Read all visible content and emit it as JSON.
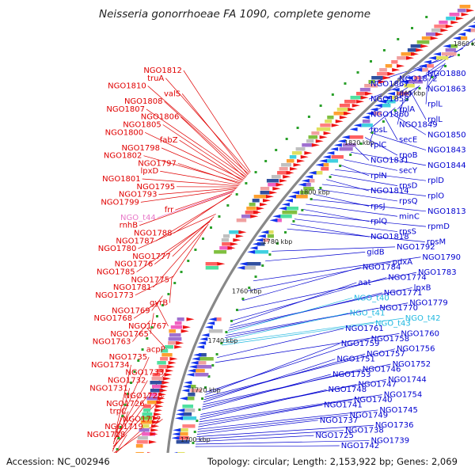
{
  "title": "Neisseria gonorrhoeae FA 1090, complete genome",
  "footer": {
    "accession": "Accession: NC_002946",
    "summary": "Topology: circular; Length: 2,153,922 bp; Genes: 2,069"
  },
  "colors": {
    "left_label": "#e00000",
    "right_label": "#0000d0",
    "trna_left": "#e878c8",
    "trna_right": "#20b8e0",
    "chromosome": "#888888",
    "tick": "#2aa02a"
  },
  "scale_marks": [
    {
      "kbp": 1860,
      "label": "1860 kbp"
    },
    {
      "kbp": 1840,
      "label": "1840 kbp"
    },
    {
      "kbp": 1820,
      "label": "1820 kbp"
    },
    {
      "kbp": 1800,
      "label": "1800 kbp"
    },
    {
      "kbp": 1780,
      "label": "1780 kbp"
    },
    {
      "kbp": 1760,
      "label": "1760 kbp"
    },
    {
      "kbp": 1740,
      "label": "1740 kbp"
    },
    {
      "kbp": 1720,
      "label": "1720 kbp"
    },
    {
      "kbp": 1700,
      "label": "1700 kbp"
    }
  ],
  "left_labels": [
    {
      "text": "NGO1812",
      "kbp": 1808.0,
      "type": "gene"
    },
    {
      "text": "truA",
      "kbp": 1807.6,
      "type": "gene"
    },
    {
      "text": "NGO1810",
      "kbp": 1807.2,
      "type": "gene"
    },
    {
      "text": "valS",
      "kbp": 1806.8,
      "type": "gene"
    },
    {
      "text": "NGO1808",
      "kbp": 1806.4,
      "type": "gene"
    },
    {
      "text": "NGO1807",
      "kbp": 1806.0,
      "type": "gene"
    },
    {
      "text": "NGO1806",
      "kbp": 1805.6,
      "type": "gene"
    },
    {
      "text": "NGO1805",
      "kbp": 1805.2,
      "type": "gene"
    },
    {
      "text": "NGO1800",
      "kbp": 1804.8,
      "type": "gene"
    },
    {
      "text": "fabZ",
      "kbp": 1804.4,
      "type": "gene"
    },
    {
      "text": "NGO1798",
      "kbp": 1804.0,
      "type": "gene"
    },
    {
      "text": "NGO1802",
      "kbp": 1803.6,
      "type": "gene"
    },
    {
      "text": "NGO1797",
      "kbp": 1803.2,
      "type": "gene"
    },
    {
      "text": "lpxD",
      "kbp": 1802.8,
      "type": "gene"
    },
    {
      "text": "NGO1801",
      "kbp": 1802.4,
      "type": "gene"
    },
    {
      "text": "NGO1795",
      "kbp": 1802.0,
      "type": "gene"
    },
    {
      "text": "NGO1793",
      "kbp": 1801.6,
      "type": "gene"
    },
    {
      "text": "NGO1799",
      "kbp": 1801.2,
      "type": "gene"
    },
    {
      "text": "frr",
      "kbp": 1800.8,
      "type": "gene"
    },
    {
      "text": "NGO_t44",
      "kbp": 1800.4,
      "type": "trna"
    },
    {
      "text": "rnhB",
      "kbp": 1800.0,
      "type": "gene"
    },
    {
      "text": "NGO1788",
      "kbp": 1799.2,
      "type": "gene"
    },
    {
      "text": "NGO1787",
      "kbp": 1798.4,
      "type": "gene"
    },
    {
      "text": "NGO1780",
      "kbp": 1791.0,
      "type": "gene"
    },
    {
      "text": "NGO1777",
      "kbp": 1790.0,
      "type": "gene"
    },
    {
      "text": "NGO1776",
      "kbp": 1789.0,
      "type": "gene"
    },
    {
      "text": "NGO1785",
      "kbp": 1788.0,
      "type": "gene"
    },
    {
      "text": "NGO1775",
      "kbp": 1787.0,
      "type": "gene"
    },
    {
      "text": "NGO1781",
      "kbp": 1786.0,
      "type": "gene"
    },
    {
      "text": "NGO1773",
      "kbp": 1766.0,
      "type": "gene"
    },
    {
      "text": "gyrB",
      "kbp": 1764.5,
      "type": "gene"
    },
    {
      "text": "NGO1769",
      "kbp": 1758.0,
      "type": "gene"
    },
    {
      "text": "NGO1768",
      "kbp": 1756.0,
      "type": "gene"
    },
    {
      "text": "NGO1767",
      "kbp": 1754.0,
      "type": "gene"
    },
    {
      "text": "NGO1765",
      "kbp": 1751.0,
      "type": "gene"
    },
    {
      "text": "NGO1763",
      "kbp": 1748.0,
      "type": "gene"
    },
    {
      "text": "acpP",
      "kbp": 1745.0,
      "type": "gene"
    },
    {
      "text": "NGO1735",
      "kbp": 1702.0,
      "type": "gene"
    },
    {
      "text": "NGO1734",
      "kbp": 1701.0,
      "type": "gene"
    },
    {
      "text": "NGO1733",
      "kbp": 1700.0,
      "type": "gene"
    },
    {
      "text": "NGO1732",
      "kbp": 1699.0,
      "type": "gene"
    },
    {
      "text": "NGO1731",
      "kbp": 1698.0,
      "type": "gene"
    },
    {
      "text": "NGO1728",
      "kbp": 1697.0,
      "type": "gene"
    },
    {
      "text": "NGO1726",
      "kbp": 1696.0,
      "type": "gene"
    },
    {
      "text": "trpC",
      "kbp": 1695.0,
      "type": "gene"
    },
    {
      "text": "NGO1722",
      "kbp": 1694.0,
      "type": "gene"
    },
    {
      "text": "NGO1719",
      "kbp": 1693.0,
      "type": "gene"
    },
    {
      "text": "NGO1718",
      "kbp": 1692.0,
      "type": "gene"
    }
  ],
  "right_labels": [
    {
      "text": "NGO1880",
      "kbp": 1862.0,
      "type": "gene"
    },
    {
      "text": "NGO1872",
      "kbp": 1858.0,
      "type": "gene"
    },
    {
      "text": "NGO1867",
      "kbp": 1855.0,
      "type": "gene"
    },
    {
      "text": "NGO1863",
      "kbp": 1852.0,
      "type": "gene"
    },
    {
      "text": "def",
      "kbp": 1851.4,
      "type": "gene"
    },
    {
      "text": "NGO1858",
      "kbp": 1849.0,
      "type": "gene"
    },
    {
      "text": "rplL",
      "kbp": 1846.0,
      "type": "gene"
    },
    {
      "text": "rplA",
      "kbp": 1843.0,
      "type": "gene"
    },
    {
      "text": "NGO1860",
      "kbp": 1842.4,
      "type": "gene"
    },
    {
      "text": "rplL",
      "kbp": 1840.0,
      "type": "gene"
    },
    {
      "text": "NGO1849",
      "kbp": 1837.0,
      "type": "gene"
    },
    {
      "text": "rpsL",
      "kbp": 1834.0,
      "type": "gene"
    },
    {
      "text": "NGO1850",
      "kbp": 1832.0,
      "type": "gene"
    },
    {
      "text": "secE",
      "kbp": 1830.0,
      "type": "gene"
    },
    {
      "text": "rplC",
      "kbp": 1826.0,
      "type": "gene"
    },
    {
      "text": "NGO1843",
      "kbp": 1824.0,
      "type": "gene"
    },
    {
      "text": "rpoB",
      "kbp": 1822.0,
      "type": "gene"
    },
    {
      "text": "NGO1831",
      "kbp": 1818.0,
      "type": "gene"
    },
    {
      "text": "NGO1844",
      "kbp": 1816.0,
      "type": "gene"
    },
    {
      "text": "secY",
      "kbp": 1813.0,
      "type": "gene"
    },
    {
      "text": "rplN",
      "kbp": 1811.0,
      "type": "gene"
    },
    {
      "text": "rplD",
      "kbp": 1809.0,
      "type": "gene"
    },
    {
      "text": "rpsD",
      "kbp": 1807.0,
      "type": "gene"
    },
    {
      "text": "NGO1814",
      "kbp": 1805.0,
      "type": "gene"
    },
    {
      "text": "rplO",
      "kbp": 1803.0,
      "type": "gene"
    },
    {
      "text": "rpsQ",
      "kbp": 1801.0,
      "type": "gene"
    },
    {
      "text": "rpsJ",
      "kbp": 1799.0,
      "type": "gene"
    },
    {
      "text": "NGO1813",
      "kbp": 1797.0,
      "type": "gene"
    },
    {
      "text": "minC",
      "kbp": 1795.0,
      "type": "gene"
    },
    {
      "text": "rplQ",
      "kbp": 1793.0,
      "type": "gene"
    },
    {
      "text": "rpmD",
      "kbp": 1791.0,
      "type": "gene"
    },
    {
      "text": "rpsS",
      "kbp": 1789.0,
      "type": "gene"
    },
    {
      "text": "NGO1818",
      "kbp": 1787.0,
      "type": "gene"
    },
    {
      "text": "rpsM",
      "kbp": 1785.0,
      "type": "gene"
    },
    {
      "text": "NGO1792",
      "kbp": 1776.0,
      "type": "gene"
    },
    {
      "text": "gidB",
      "kbp": 1772.0,
      "type": "gene"
    },
    {
      "text": "NGO1790",
      "kbp": 1764.0,
      "type": "gene"
    },
    {
      "text": "pdxA",
      "kbp": 1760.0,
      "type": "gene"
    },
    {
      "text": "NGO1784",
      "kbp": 1756.0,
      "type": "gene"
    },
    {
      "text": "NGO1783",
      "kbp": 1752.0,
      "type": "gene"
    },
    {
      "text": "NGO1774",
      "kbp": 1748.0,
      "type": "gene"
    },
    {
      "text": "aat",
      "kbp": 1746.0,
      "type": "gene"
    },
    {
      "text": "lpxB",
      "kbp": 1745.0,
      "type": "gene"
    },
    {
      "text": "NGO1771",
      "kbp": 1744.0,
      "type": "gene"
    },
    {
      "text": "NGO_t40",
      "kbp": 1743.0,
      "type": "trna"
    },
    {
      "text": "NGO1779",
      "kbp": 1742.0,
      "type": "gene"
    },
    {
      "text": "NGO1770",
      "kbp": 1741.0,
      "type": "gene"
    },
    {
      "text": "NGO_t41",
      "kbp": 1740.0,
      "type": "trna"
    },
    {
      "text": "NGO_t42",
      "kbp": 1739.0,
      "type": "trna"
    },
    {
      "text": "NGO_t43",
      "kbp": 1738.0,
      "type": "trna"
    },
    {
      "text": "NGO1761",
      "kbp": 1733.0,
      "type": "gene"
    },
    {
      "text": "NGO1760",
      "kbp": 1731.0,
      "type": "gene"
    },
    {
      "text": "NGO1758",
      "kbp": 1719.0,
      "type": "gene"
    },
    {
      "text": "NGO1759",
      "kbp": 1718.0,
      "type": "gene"
    },
    {
      "text": "NGO1756",
      "kbp": 1717.0,
      "type": "gene"
    },
    {
      "text": "NGO1757",
      "kbp": 1716.0,
      "type": "gene"
    },
    {
      "text": "NGO1751",
      "kbp": 1715.0,
      "type": "gene"
    },
    {
      "text": "NGO1752",
      "kbp": 1714.0,
      "type": "gene"
    },
    {
      "text": "NGO1746",
      "kbp": 1713.0,
      "type": "gene"
    },
    {
      "text": "NGO1753",
      "kbp": 1712.0,
      "type": "gene"
    },
    {
      "text": "NGO1744",
      "kbp": 1710.0,
      "type": "gene"
    },
    {
      "text": "NGO1747",
      "kbp": 1709.0,
      "type": "gene"
    },
    {
      "text": "NGO1748",
      "kbp": 1708.0,
      "type": "gene"
    },
    {
      "text": "NGO1754",
      "kbp": 1707.0,
      "type": "gene"
    },
    {
      "text": "NGO1740",
      "kbp": 1706.0,
      "type": "gene"
    },
    {
      "text": "NGO1741",
      "kbp": 1705.0,
      "type": "gene"
    },
    {
      "text": "NGO1745",
      "kbp": 1704.0,
      "type": "gene"
    },
    {
      "text": "NGO1749",
      "kbp": 1703.0,
      "type": "gene"
    },
    {
      "text": "NGO1737",
      "kbp": 1702.0,
      "type": "gene"
    },
    {
      "text": "NGO1736",
      "kbp": 1701.0,
      "type": "gene"
    },
    {
      "text": "NGO1738",
      "kbp": 1700.0,
      "type": "gene"
    },
    {
      "text": "NGO1725",
      "kbp": 1699.0,
      "type": "gene"
    },
    {
      "text": "NGO1739",
      "kbp": 1698.0,
      "type": "gene"
    },
    {
      "text": "NGO1742",
      "kbp": 1697.0,
      "type": "gene"
    }
  ]
}
